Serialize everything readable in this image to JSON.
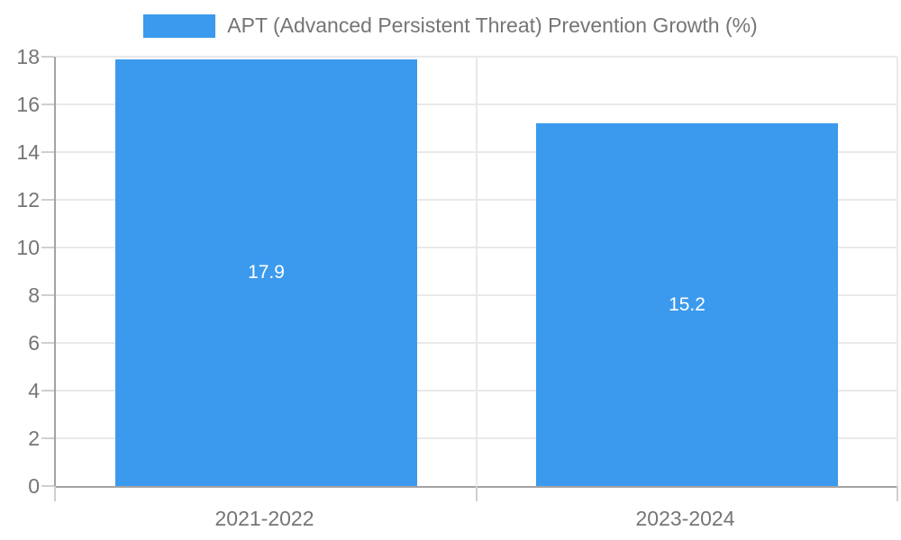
{
  "chart_data": {
    "type": "bar",
    "title": "APT (Advanced Persistent Threat) Prevention Growth (%)",
    "categories": [
      "2021-2022",
      "2023-2024"
    ],
    "series": [
      {
        "name": "APT (Advanced Persistent Threat) Prevention Growth (%)",
        "values": [
          17.9,
          15.2
        ]
      }
    ],
    "value_labels": [
      "17.9",
      "15.2"
    ],
    "xlabel": "",
    "ylabel": "",
    "ylim": [
      0,
      18
    ],
    "yticks": [
      0,
      2,
      4,
      6,
      8,
      10,
      12,
      14,
      16,
      18
    ],
    "grid": true,
    "legend_position": "top",
    "colors": {
      "bar": "#3b9aed",
      "text": "#757575",
      "axis": "#a3a3a3",
      "grid": "#e9e9e9",
      "tick": "#cfcfcf",
      "value_label": "#ffffff",
      "background": "#ffffff"
    }
  }
}
